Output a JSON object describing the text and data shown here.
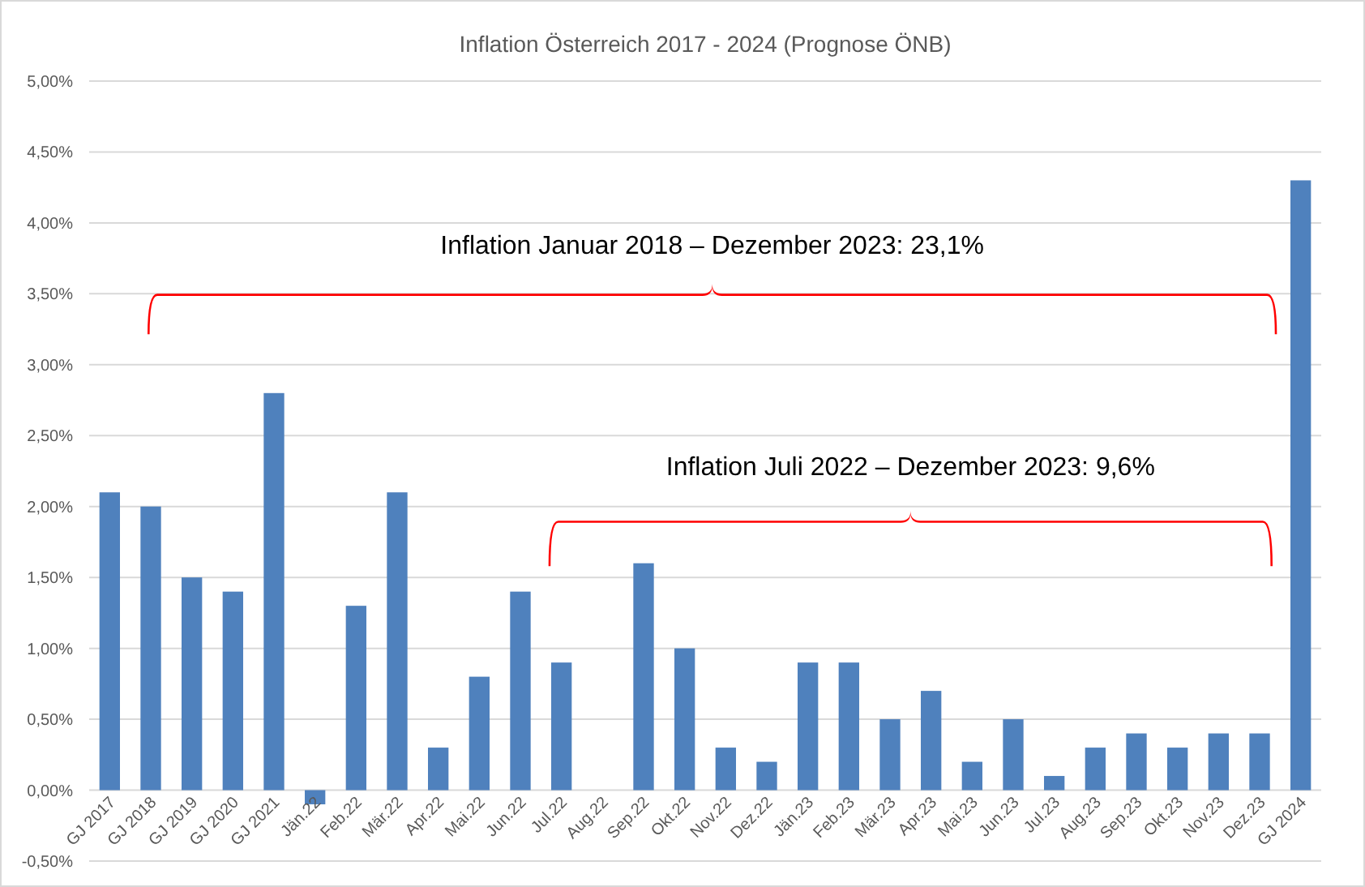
{
  "chart_data": {
    "type": "bar",
    "title": "Inflation Österreich 2017 - 2024 (Prognose ÖNB)",
    "categories": [
      "GJ 2017",
      "GJ 2018",
      "GJ 2019",
      "GJ 2020",
      "GJ 2021",
      "Jän.22",
      "Feb.22",
      "Mär.22",
      "Apr.22",
      "Mai.22",
      "Jun.22",
      "Jul.22",
      "Aug.22",
      "Sep.22",
      "Okt.22",
      "Nov.22",
      "Dez.22",
      "Jän.23",
      "Feb.23",
      "Mär.23",
      "Apr.23",
      "Mai.23",
      "Jun.23",
      "Jul.23",
      "Aug.23",
      "Sep.23",
      "Okt.23",
      "Nov.23",
      "Dez.23",
      "GJ 2024"
    ],
    "values": [
      2.1,
      2.0,
      1.5,
      1.4,
      2.8,
      -0.1,
      1.3,
      2.1,
      0.3,
      0.8,
      1.4,
      0.9,
      0,
      1.6,
      1.0,
      0.3,
      0.2,
      0.9,
      0.9,
      0.5,
      0.7,
      0.2,
      0.5,
      0.1,
      0.3,
      0.4,
      0.3,
      0.4,
      0.4,
      4.3
    ],
    "color": "#4f81bd",
    "ylim": [
      -0.5,
      5.0
    ],
    "yticks": [
      {
        "value": -0.5,
        "label": "-0,50%"
      },
      {
        "value": 0,
        "label": "0,00%"
      },
      {
        "value": 0.5,
        "label": "0,50%"
      },
      {
        "value": 1.0,
        "label": "1,00%"
      },
      {
        "value": 1.5,
        "label": "1,50%"
      },
      {
        "value": 2.0,
        "label": "2,00%"
      },
      {
        "value": 2.5,
        "label": "2,50%"
      },
      {
        "value": 3.0,
        "label": "3,00%"
      },
      {
        "value": 3.5,
        "label": "3,50%"
      },
      {
        "value": 4.0,
        "label": "4,00%"
      },
      {
        "value": 4.5,
        "label": "4,50%"
      },
      {
        "value": 5.0,
        "label": "5,00%"
      }
    ],
    "grid": "y",
    "annotations": [
      "Inflation Januar 2018 – Dezember 2023: 23,1%",
      "Inflation Juli 2022 – Dezember 2023: 9,6%"
    ]
  }
}
